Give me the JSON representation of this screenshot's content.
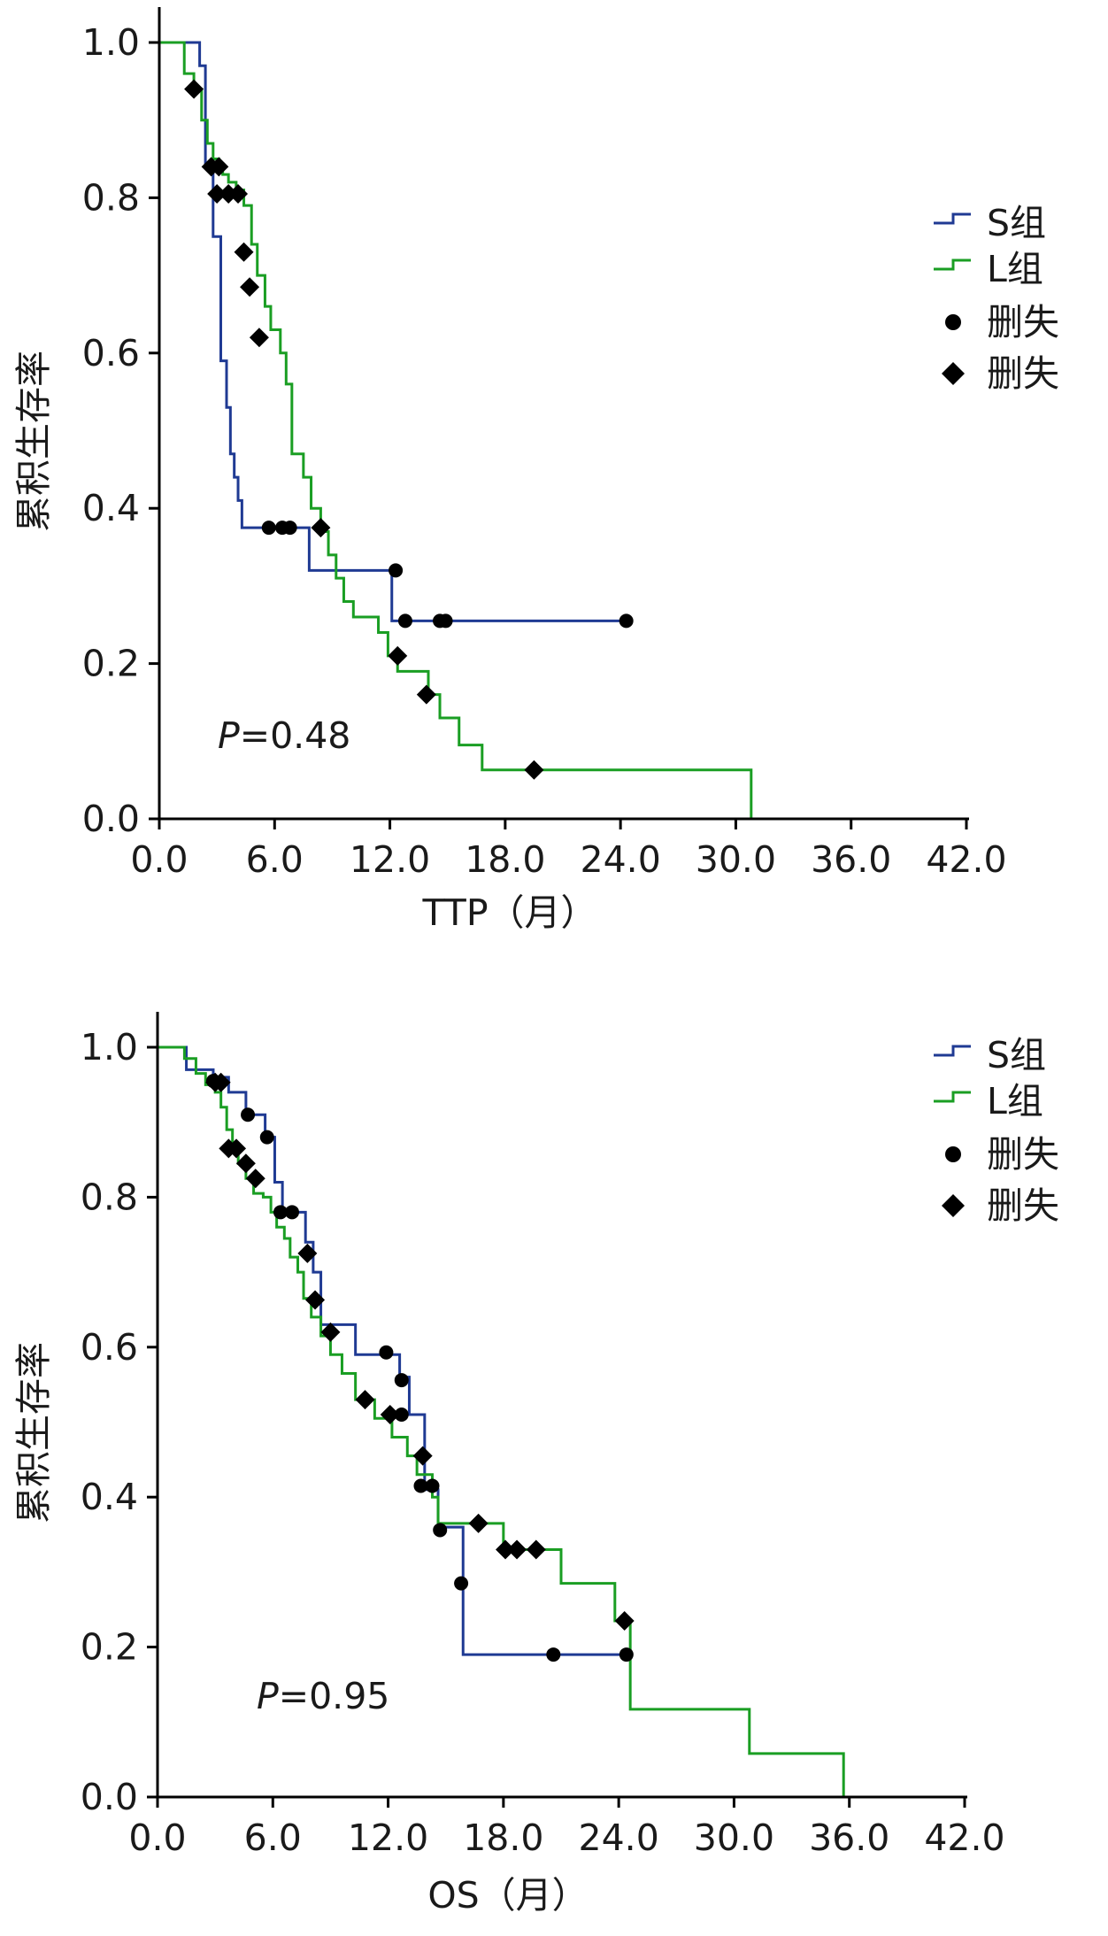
{
  "chart_data": [
    {
      "type": "line",
      "subtype": "kaplan-meier",
      "title": "",
      "xlabel": "TTP（月）",
      "ylabel": "累积生存率",
      "xlim": [
        0,
        42
      ],
      "ylim": [
        0,
        1
      ],
      "xticks": [
        "0.0",
        "6.0",
        "12.0",
        "18.0",
        "24.0",
        "30.0",
        "36.0",
        "42.0"
      ],
      "yticks": [
        "0.0",
        "0.2",
        "0.4",
        "0.6",
        "0.8",
        "1.0"
      ],
      "p_value": {
        "prefix": "P",
        "text": "=0.48"
      },
      "legend": {
        "position": "right",
        "entries": [
          "S组",
          "L组",
          "删失",
          "删失"
        ]
      },
      "series": [
        {
          "name": "S组",
          "color": "#1f3a93",
          "x": [
            0,
            1.9,
            2.1,
            2.4,
            2.8,
            3.2,
            3.5,
            3.7,
            3.9,
            4.1,
            4.3,
            7.8,
            12.1,
            24.3
          ],
          "y": [
            1.0,
            1.0,
            0.97,
            0.84,
            0.75,
            0.59,
            0.53,
            0.47,
            0.44,
            0.41,
            0.375,
            0.32,
            0.255,
            0.255
          ],
          "censored": [
            {
              "x": 5.7,
              "y": 0.375
            },
            {
              "x": 6.4,
              "y": 0.375
            },
            {
              "x": 6.8,
              "y": 0.375
            },
            {
              "x": 12.3,
              "y": 0.32
            },
            {
              "x": 12.8,
              "y": 0.255
            },
            {
              "x": 14.6,
              "y": 0.255
            },
            {
              "x": 14.9,
              "y": 0.255
            },
            {
              "x": 24.3,
              "y": 0.255
            }
          ]
        },
        {
          "name": "L组",
          "color": "#1a9e23",
          "x": [
            0,
            1.3,
            1.8,
            2.2,
            2.5,
            2.8,
            3.1,
            3.3,
            3.6,
            4.0,
            4.4,
            4.8,
            5.1,
            5.5,
            5.8,
            6.3,
            6.6,
            6.9,
            7.5,
            7.9,
            8.4,
            8.8,
            9.2,
            9.6,
            10.1,
            11.4,
            11.9,
            12.4,
            14.0,
            14.6,
            15.6,
            16.8,
            30.8
          ],
          "y": [
            1.0,
            0.96,
            0.94,
            0.9,
            0.87,
            0.85,
            0.84,
            0.83,
            0.82,
            0.81,
            0.79,
            0.74,
            0.7,
            0.66,
            0.63,
            0.6,
            0.56,
            0.47,
            0.44,
            0.4,
            0.37,
            0.34,
            0.31,
            0.28,
            0.26,
            0.24,
            0.21,
            0.19,
            0.16,
            0.13,
            0.095,
            0.063,
            0.0
          ],
          "censored": [
            {
              "x": 1.8,
              "y": 0.94
            },
            {
              "x": 2.7,
              "y": 0.84
            },
            {
              "x": 3.1,
              "y": 0.84
            },
            {
              "x": 3.0,
              "y": 0.805
            },
            {
              "x": 3.6,
              "y": 0.805
            },
            {
              "x": 4.1,
              "y": 0.805
            },
            {
              "x": 4.4,
              "y": 0.73
            },
            {
              "x": 4.7,
              "y": 0.685
            },
            {
              "x": 5.2,
              "y": 0.62
            },
            {
              "x": 8.4,
              "y": 0.375
            },
            {
              "x": 12.4,
              "y": 0.21
            },
            {
              "x": 13.9,
              "y": 0.16
            },
            {
              "x": 19.5,
              "y": 0.063
            }
          ]
        }
      ]
    },
    {
      "type": "line",
      "subtype": "kaplan-meier",
      "title": "",
      "xlabel": "OS（月）",
      "ylabel": "累积生存率",
      "xlim": [
        0,
        42
      ],
      "ylim": [
        0,
        1
      ],
      "xticks": [
        "0.0",
        "6.0",
        "12.0",
        "18.0",
        "24.0",
        "30.0",
        "36.0",
        "42.0"
      ],
      "yticks": [
        "0.0",
        "0.2",
        "0.4",
        "0.6",
        "0.8",
        "1.0"
      ],
      "p_value": {
        "prefix": "P",
        "text": "=0.95"
      },
      "legend": {
        "position": "right",
        "entries": [
          "S组",
          "L组",
          "删失",
          "删失"
        ]
      },
      "series": [
        {
          "name": "S组",
          "color": "#1f3a93",
          "x": [
            0,
            1.5,
            2.9,
            3.7,
            4.6,
            5.6,
            6.1,
            6.5,
            7.7,
            8.1,
            8.5,
            10.3,
            12.6,
            13.1,
            13.9,
            14.6,
            15.9,
            24.3
          ],
          "y": [
            1.0,
            0.97,
            0.96,
            0.94,
            0.91,
            0.88,
            0.82,
            0.78,
            0.74,
            0.7,
            0.63,
            0.59,
            0.56,
            0.51,
            0.41,
            0.36,
            0.19,
            0.19
          ],
          "censored": [
            {
              "x": 2.9,
              "y": 0.955
            },
            {
              "x": 4.7,
              "y": 0.91
            },
            {
              "x": 5.7,
              "y": 0.88
            },
            {
              "x": 6.4,
              "y": 0.78
            },
            {
              "x": 7.0,
              "y": 0.78
            },
            {
              "x": 11.9,
              "y": 0.593
            },
            {
              "x": 12.7,
              "y": 0.556
            },
            {
              "x": 12.7,
              "y": 0.51
            },
            {
              "x": 13.7,
              "y": 0.415
            },
            {
              "x": 14.3,
              "y": 0.415
            },
            {
              "x": 14.7,
              "y": 0.356
            },
            {
              "x": 15.8,
              "y": 0.285
            },
            {
              "x": 20.6,
              "y": 0.19
            },
            {
              "x": 24.4,
              "y": 0.19
            }
          ]
        },
        {
          "name": "L组",
          "color": "#1a9e23",
          "x": [
            0,
            1.4,
            2.0,
            2.5,
            3.0,
            3.3,
            3.6,
            3.9,
            4.2,
            4.6,
            5.0,
            5.5,
            5.9,
            6.2,
            6.6,
            6.9,
            7.3,
            7.6,
            8.0,
            8.5,
            9.0,
            9.6,
            10.3,
            11.3,
            12.2,
            13.0,
            13.5,
            14.3,
            14.6,
            16.0,
            18.0,
            21.0,
            23.8,
            24.6,
            30.8,
            35.7
          ],
          "y": [
            1.0,
            0.985,
            0.965,
            0.95,
            0.94,
            0.92,
            0.89,
            0.865,
            0.845,
            0.825,
            0.805,
            0.8,
            0.78,
            0.76,
            0.745,
            0.72,
            0.7,
            0.665,
            0.64,
            0.615,
            0.59,
            0.565,
            0.53,
            0.505,
            0.48,
            0.455,
            0.43,
            0.4,
            0.365,
            0.365,
            0.33,
            0.285,
            0.235,
            0.117,
            0.058,
            0.0
          ],
          "censored": [
            {
              "x": 3.0,
              "y": 0.953
            },
            {
              "x": 3.3,
              "y": 0.953
            },
            {
              "x": 3.7,
              "y": 0.865
            },
            {
              "x": 4.1,
              "y": 0.865
            },
            {
              "x": 4.6,
              "y": 0.845
            },
            {
              "x": 5.1,
              "y": 0.825
            },
            {
              "x": 7.8,
              "y": 0.725
            },
            {
              "x": 8.2,
              "y": 0.663
            },
            {
              "x": 9.0,
              "y": 0.62
            },
            {
              "x": 10.8,
              "y": 0.53
            },
            {
              "x": 12.1,
              "y": 0.51
            },
            {
              "x": 13.8,
              "y": 0.455
            },
            {
              "x": 16.7,
              "y": 0.365
            },
            {
              "x": 18.1,
              "y": 0.33
            },
            {
              "x": 18.7,
              "y": 0.33
            },
            {
              "x": 19.7,
              "y": 0.33
            },
            {
              "x": 24.3,
              "y": 0.235
            }
          ]
        }
      ]
    }
  ]
}
